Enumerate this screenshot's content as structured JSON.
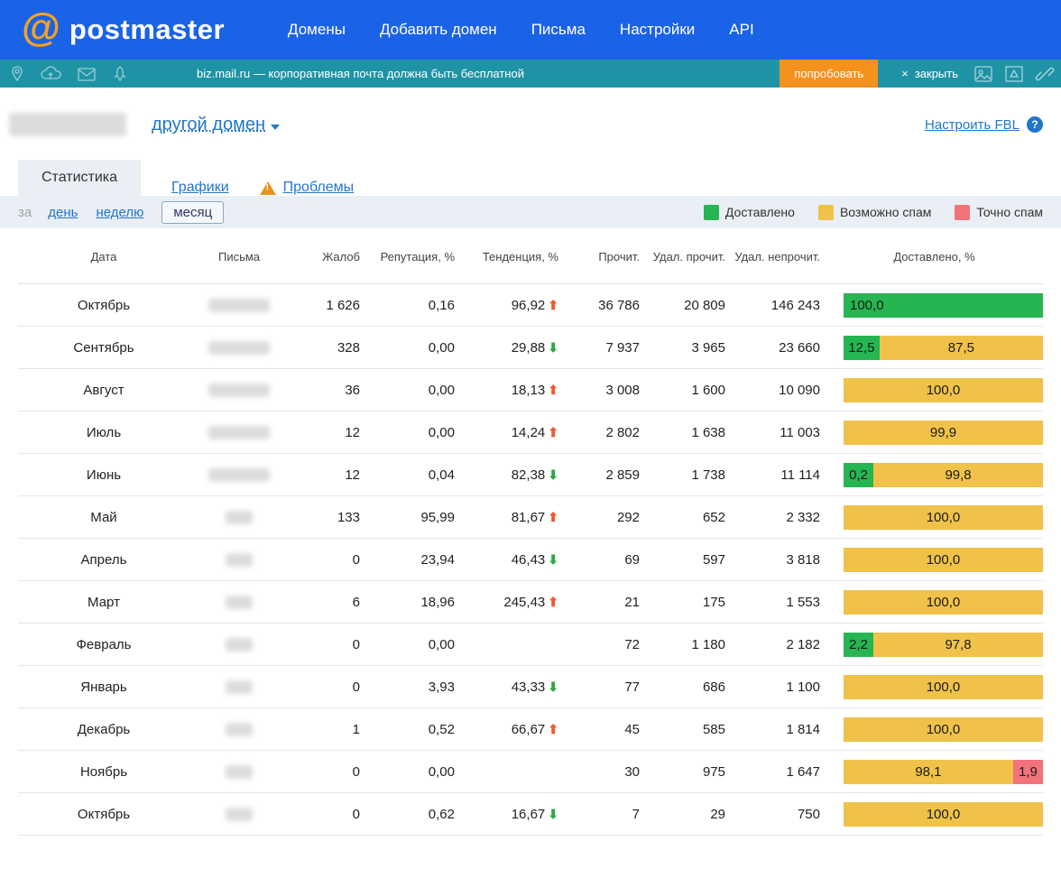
{
  "header": {
    "logo_text": "postmaster",
    "logo_at": "@",
    "nav": [
      "Домены",
      "Добавить домен",
      "Письма",
      "Настройки",
      "API"
    ]
  },
  "banner": {
    "text": "biz.mail.ru — корпоративная почта должна быть бесплатной",
    "try_button": "попробовать",
    "close_x": "×",
    "close_label": "закрыть"
  },
  "domain_bar": {
    "other_domain_label": "другой домен",
    "fbl_link": "Настроить FBL",
    "help_icon": "?"
  },
  "tabs": [
    {
      "label": "Статистика",
      "active": true,
      "warning": false
    },
    {
      "label": "Графики",
      "active": false,
      "warning": false
    },
    {
      "label": "Проблемы",
      "active": false,
      "warning": true
    }
  ],
  "period": {
    "prefix": "за",
    "options": [
      {
        "label": "день",
        "selected": false
      },
      {
        "label": "неделю",
        "selected": false
      },
      {
        "label": "месяц",
        "selected": true
      }
    ]
  },
  "legend": [
    {
      "label": "Доставлено",
      "color": "#27b552"
    },
    {
      "label": "Возможно спам",
      "color": "#f0c24a"
    },
    {
      "label": "Точно спам",
      "color": "#f3737a"
    }
  ],
  "colors": {
    "topbar_blue": "#1b63e6",
    "banner_teal": "#1f93a6",
    "try_orange": "#f5921e",
    "delivered_green": "#27b552",
    "maybe_spam_yellow": "#f0c24a",
    "spam_red": "#f3737a",
    "trend_up_red": "#ef5a2e",
    "trend_down_green": "#2aa843"
  },
  "table": {
    "headers": [
      "Дата",
      "Письма",
      "Жалоб",
      "Репутация, %",
      "Тенденция, %",
      "Прочит.",
      "Удал. прочит.",
      "Удал. непрочит.",
      "Доставлено, %"
    ],
    "rows": [
      {
        "date": "Октябрь",
        "complaints": "1 626",
        "reputation": "0,16",
        "trend": "96,92",
        "trend_dir": "up",
        "read": "36 786",
        "del_read": "20 809",
        "del_unread": "146 243",
        "bar": [
          {
            "color": "green",
            "label": "100,0",
            "w": 100,
            "align": "left"
          }
        ]
      },
      {
        "date": "Сентябрь",
        "complaints": "328",
        "reputation": "0,00",
        "trend": "29,88",
        "trend_dir": "down",
        "read": "7 937",
        "del_read": "3 965",
        "del_unread": "23 660",
        "bar": [
          {
            "color": "green",
            "label": "12,5",
            "w": 18
          },
          {
            "color": "yellow",
            "label": "87,5",
            "w": 82
          }
        ]
      },
      {
        "date": "Август",
        "complaints": "36",
        "reputation": "0,00",
        "trend": "18,13",
        "trend_dir": "up",
        "read": "3 008",
        "del_read": "1 600",
        "del_unread": "10 090",
        "bar": [
          {
            "color": "yellow",
            "label": "100,0",
            "w": 100
          }
        ]
      },
      {
        "date": "Июль",
        "complaints": "12",
        "reputation": "0,00",
        "trend": "14,24",
        "trend_dir": "up",
        "read": "2 802",
        "del_read": "1 638",
        "del_unread": "11 003",
        "bar": [
          {
            "color": "yellow",
            "label": "99,9",
            "w": 100
          }
        ]
      },
      {
        "date": "Июнь",
        "complaints": "12",
        "reputation": "0,04",
        "trend": "82,38",
        "trend_dir": "down",
        "read": "2 859",
        "del_read": "1 738",
        "del_unread": "11 114",
        "bar": [
          {
            "color": "green",
            "label": "0,2",
            "w": 15
          },
          {
            "color": "yellow",
            "label": "99,8",
            "w": 85
          }
        ]
      },
      {
        "date": "Май",
        "complaints": "133",
        "reputation": "95,99",
        "trend": "81,67",
        "trend_dir": "up",
        "read": "292",
        "del_read": "652",
        "del_unread": "2 332",
        "bar": [
          {
            "color": "yellow",
            "label": "100,0",
            "w": 100
          }
        ]
      },
      {
        "date": "Апрель",
        "complaints": "0",
        "reputation": "23,94",
        "trend": "46,43",
        "trend_dir": "down",
        "read": "69",
        "del_read": "597",
        "del_unread": "3 818",
        "bar": [
          {
            "color": "yellow",
            "label": "100,0",
            "w": 100
          }
        ]
      },
      {
        "date": "Март",
        "complaints": "6",
        "reputation": "18,96",
        "trend": "245,43",
        "trend_dir": "up",
        "read": "21",
        "del_read": "175",
        "del_unread": "1 553",
        "bar": [
          {
            "color": "yellow",
            "label": "100,0",
            "w": 100
          }
        ]
      },
      {
        "date": "Февраль",
        "complaints": "0",
        "reputation": "0,00",
        "trend": "",
        "trend_dir": "",
        "read": "72",
        "del_read": "1 180",
        "del_unread": "2 182",
        "bar": [
          {
            "color": "green",
            "label": "2,2",
            "w": 15
          },
          {
            "color": "yellow",
            "label": "97,8",
            "w": 85
          }
        ]
      },
      {
        "date": "Январь",
        "complaints": "0",
        "reputation": "3,93",
        "trend": "43,33",
        "trend_dir": "down",
        "read": "77",
        "del_read": "686",
        "del_unread": "1 100",
        "bar": [
          {
            "color": "yellow",
            "label": "100,0",
            "w": 100
          }
        ]
      },
      {
        "date": "Декабрь",
        "complaints": "1",
        "reputation": "0,52",
        "trend": "66,67",
        "trend_dir": "up",
        "read": "45",
        "del_read": "585",
        "del_unread": "1 814",
        "bar": [
          {
            "color": "yellow",
            "label": "100,0",
            "w": 100
          }
        ]
      },
      {
        "date": "Ноябрь",
        "complaints": "0",
        "reputation": "0,00",
        "trend": "",
        "trend_dir": "",
        "read": "30",
        "del_read": "975",
        "del_unread": "1 647",
        "bar": [
          {
            "color": "yellow",
            "label": "98,1",
            "w": 85
          },
          {
            "color": "red",
            "label": "1,9",
            "w": 15
          }
        ]
      },
      {
        "date": "Октябрь",
        "complaints": "0",
        "reputation": "0,62",
        "trend": "16,67",
        "trend_dir": "down",
        "read": "7",
        "del_read": "29",
        "del_unread": "750",
        "bar": [
          {
            "color": "yellow",
            "label": "100,0",
            "w": 100
          }
        ]
      }
    ]
  }
}
